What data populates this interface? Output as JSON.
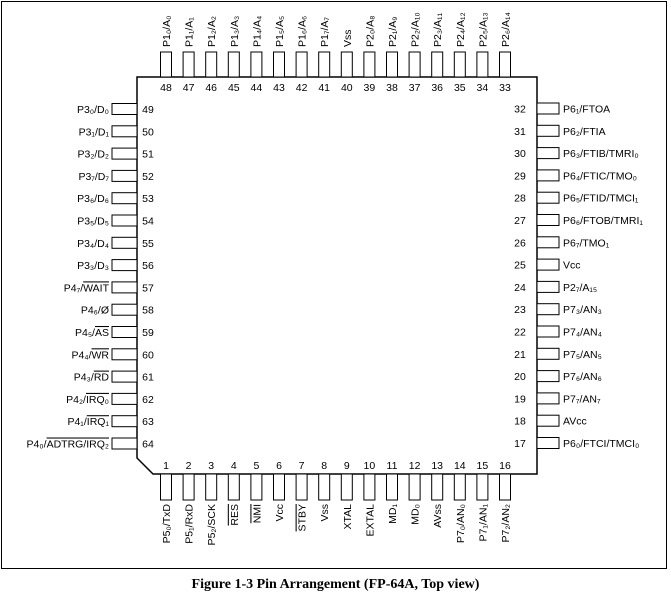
{
  "caption": "Figure 1-3   Pin Arrangement (FP-64A, Top view)",
  "pins": [
    {
      "num": "1",
      "label": "P5₀/TxD"
    },
    {
      "num": "2",
      "label": "P5₁/RxD"
    },
    {
      "num": "3",
      "label": "P5₂/SCK"
    },
    {
      "num": "4",
      "label": "RES",
      "overline": "all"
    },
    {
      "num": "5",
      "label": "NMI",
      "overline": "all"
    },
    {
      "num": "6",
      "label": "Vcc"
    },
    {
      "num": "7",
      "label": "STBY",
      "overline": "all"
    },
    {
      "num": "8",
      "label": "Vss"
    },
    {
      "num": "9",
      "label": "XTAL"
    },
    {
      "num": "10",
      "label": "EXTAL"
    },
    {
      "num": "11",
      "label": "MD₁"
    },
    {
      "num": "12",
      "label": "MD₀"
    },
    {
      "num": "13",
      "label": "AVss"
    },
    {
      "num": "14",
      "label": "P7₀/AN₀"
    },
    {
      "num": "15",
      "label": "P7₁/AN₁"
    },
    {
      "num": "16",
      "label": "P7₂/AN₂"
    },
    {
      "num": "17",
      "label": "P6₀/FTCI/TMCI₀"
    },
    {
      "num": "18",
      "label": "AVcc"
    },
    {
      "num": "19",
      "label": "P7₇/AN₇"
    },
    {
      "num": "20",
      "label": "P7₆/AN₆"
    },
    {
      "num": "21",
      "label": "P7₅/AN₅"
    },
    {
      "num": "22",
      "label": "P7₄/AN₄"
    },
    {
      "num": "23",
      "label": "P7₃/AN₃"
    },
    {
      "num": "24",
      "label": "P2₇/A₁₅"
    },
    {
      "num": "25",
      "label": "Vcc"
    },
    {
      "num": "26",
      "label": "P6₇/TMO₁"
    },
    {
      "num": "27",
      "label": "P6₆/FTOB/TMRI₁"
    },
    {
      "num": "28",
      "label": "P6₅/FTID/TMCI₁"
    },
    {
      "num": "29",
      "label": "P6₄/FTIC/TMO₀"
    },
    {
      "num": "30",
      "label": "P6₃/FTIB/TMRI₀"
    },
    {
      "num": "31",
      "label": "P6₂/FTIA"
    },
    {
      "num": "32",
      "label": "P6₁/FTOA"
    },
    {
      "num": "33",
      "label": "P2₆/A₁₄"
    },
    {
      "num": "34",
      "label": "P2₅/A₁₃"
    },
    {
      "num": "35",
      "label": "P2₄/A₁₂"
    },
    {
      "num": "36",
      "label": "P2₃/A₁₁"
    },
    {
      "num": "37",
      "label": "P2₂/A₁₀"
    },
    {
      "num": "38",
      "label": "P2₁/A₉"
    },
    {
      "num": "39",
      "label": "P2₀/A₈"
    },
    {
      "num": "40",
      "label": "Vss"
    },
    {
      "num": "41",
      "label": "P1₇/A₇"
    },
    {
      "num": "42",
      "label": "P1₆/A₆"
    },
    {
      "num": "43",
      "label": "P1₅/A₅"
    },
    {
      "num": "44",
      "label": "P1₄/A₄"
    },
    {
      "num": "45",
      "label": "P1₃/A₃"
    },
    {
      "num": "46",
      "label": "P1₂/A₂"
    },
    {
      "num": "47",
      "label": "P1₁/A₁"
    },
    {
      "num": "48",
      "label": "P1₀/A₀"
    },
    {
      "num": "49",
      "label": "P3₀/D₀"
    },
    {
      "num": "50",
      "label": "P3₁/D₁"
    },
    {
      "num": "51",
      "label": "P3₂/D₂"
    },
    {
      "num": "52",
      "label": "P3₇/D₇"
    },
    {
      "num": "53",
      "label": "P3₆/D₆"
    },
    {
      "num": "54",
      "label": "P3₅/D₅"
    },
    {
      "num": "55",
      "label": "P3₄/D₄"
    },
    {
      "num": "56",
      "label": "P3₃/D₃"
    },
    {
      "num": "57",
      "label": "P4₇/WAIT",
      "overline": "after-slash"
    },
    {
      "num": "58",
      "label": "P4₆/Ø"
    },
    {
      "num": "59",
      "label": "P4₅/AS",
      "overline": "after-slash"
    },
    {
      "num": "60",
      "label": "P4₄/WR",
      "overline": "after-slash"
    },
    {
      "num": "61",
      "label": "P4₃/RD",
      "overline": "after-slash"
    },
    {
      "num": "62",
      "label": "P4₂/IRQ₀",
      "overline": "after-slash"
    },
    {
      "num": "63",
      "label": "P4₁/IRQ₁",
      "overline": "after-slash"
    },
    {
      "num": "64",
      "label": "P4₀/ADTRG/IRQ₂",
      "overline": "after-slash"
    }
  ]
}
